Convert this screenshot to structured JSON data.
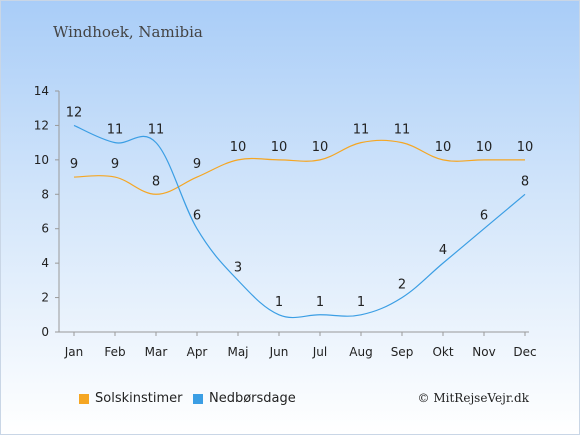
{
  "title": "Windhoek, Namibia",
  "credit": "© MitRejseVejr.dk",
  "chart_data": {
    "type": "line",
    "categories": [
      "Jan",
      "Feb",
      "Mar",
      "Apr",
      "Maj",
      "Jun",
      "Jul",
      "Aug",
      "Sep",
      "Okt",
      "Nov",
      "Dec"
    ],
    "ylim": [
      0,
      14
    ],
    "yticks": [
      0,
      2,
      4,
      6,
      8,
      10,
      12,
      14
    ],
    "grid": false,
    "legend_position": "bottom",
    "series": [
      {
        "name": "Solskinstimer",
        "color": "#f5a623",
        "values": [
          9,
          9,
          8,
          9,
          10,
          10,
          10,
          11,
          11,
          10,
          10,
          10
        ]
      },
      {
        "name": "Nedbørsdage",
        "color": "#3b9ee4",
        "values": [
          12,
          11,
          11,
          6,
          3,
          1,
          1,
          1,
          2,
          4,
          6,
          8
        ]
      }
    ]
  }
}
